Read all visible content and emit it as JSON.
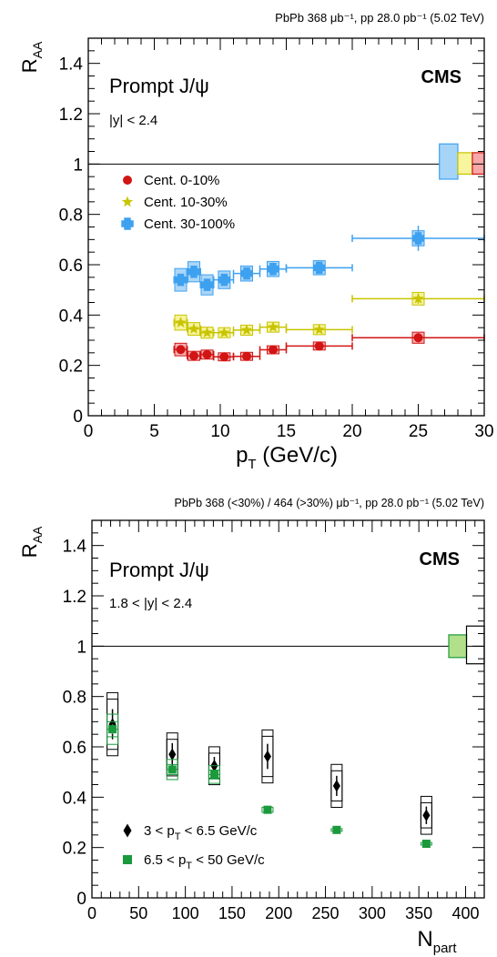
{
  "chart_data": [
    {
      "type": "scatter",
      "header": "PbPb 368 μb⁻¹, pp 28.0 pb⁻¹ (5.02 TeV)",
      "ylabel": "R_AA",
      "xlabel": "p_T (GeV/c)",
      "title": "Prompt J/ψ",
      "subtitle": "|y| < 2.4",
      "experiment": "CMS",
      "xlim": [
        0,
        30
      ],
      "ylim": [
        0,
        1.5
      ],
      "x_ticks": [
        0,
        5,
        10,
        15,
        20,
        25,
        30
      ],
      "y_ticks": [
        0,
        0.2,
        0.4,
        0.6,
        0.8,
        1,
        1.2,
        1.4
      ],
      "y_tick_labels": [
        "0",
        "0.2",
        "0.4",
        "0.6",
        "0.8",
        "1",
        "1.2",
        "1.4"
      ],
      "reference_line": 1,
      "global_uncertainty_boxes": [
        {
          "x0": 26.6,
          "x1": 28.0,
          "lo": 0.94,
          "hi": 1.08,
          "color": "#3ea1f0",
          "fill": "#a6d4f7"
        },
        {
          "x0": 28.0,
          "x1": 29.1,
          "lo": 0.96,
          "hi": 1.045,
          "color": "#c8c400",
          "fill": "#f7f59d"
        },
        {
          "x0": 29.1,
          "x1": 30.0,
          "lo": 0.96,
          "hi": 1.045,
          "color": "#d21414",
          "fill": "#f7a8a8"
        }
      ],
      "legend_position": "upper-left",
      "series": [
        {
          "name": "Cent. 0-10%",
          "marker": "circle",
          "color": "#d21414",
          "fill": "#f4b1b1",
          "points": [
            {
              "x": 7.0,
              "xlo": 6.5,
              "xhi": 7.5,
              "y": 0.263,
              "stat": 0.006,
              "syst": 0.025
            },
            {
              "x": 8.0,
              "xlo": 7.5,
              "xhi": 8.5,
              "y": 0.238,
              "stat": 0.006,
              "syst": 0.018
            },
            {
              "x": 9.0,
              "xlo": 8.5,
              "xhi": 9.5,
              "y": 0.243,
              "stat": 0.006,
              "syst": 0.018
            },
            {
              "x": 10.3,
              "xlo": 9.5,
              "xhi": 11.0,
              "y": 0.234,
              "stat": 0.006,
              "syst": 0.016
            },
            {
              "x": 12.0,
              "xlo": 11.0,
              "xhi": 13.0,
              "y": 0.236,
              "stat": 0.006,
              "syst": 0.016
            },
            {
              "x": 14.0,
              "xlo": 13.0,
              "xhi": 15.0,
              "y": 0.262,
              "stat": 0.007,
              "syst": 0.016
            },
            {
              "x": 17.5,
              "xlo": 15.0,
              "xhi": 20.0,
              "y": 0.277,
              "stat": 0.008,
              "syst": 0.016
            },
            {
              "x": 25.0,
              "xlo": 20.0,
              "xhi": 30.0,
              "y": 0.31,
              "stat": 0.018,
              "syst": 0.022
            }
          ]
        },
        {
          "name": "Cent. 10-30%",
          "marker": "star",
          "color": "#c8c400",
          "fill": "#f5f39a",
          "points": [
            {
              "x": 7.0,
              "xlo": 6.5,
              "xhi": 7.5,
              "y": 0.37,
              "stat": 0.01,
              "syst": 0.03
            },
            {
              "x": 8.0,
              "xlo": 7.5,
              "xhi": 8.5,
              "y": 0.345,
              "stat": 0.008,
              "syst": 0.025
            },
            {
              "x": 9.0,
              "xlo": 8.5,
              "xhi": 9.5,
              "y": 0.33,
              "stat": 0.008,
              "syst": 0.022
            },
            {
              "x": 10.3,
              "xlo": 9.5,
              "xhi": 11.0,
              "y": 0.33,
              "stat": 0.008,
              "syst": 0.02
            },
            {
              "x": 12.0,
              "xlo": 11.0,
              "xhi": 13.0,
              "y": 0.34,
              "stat": 0.008,
              "syst": 0.02
            },
            {
              "x": 14.0,
              "xlo": 13.0,
              "xhi": 15.0,
              "y": 0.352,
              "stat": 0.009,
              "syst": 0.02
            },
            {
              "x": 17.5,
              "xlo": 15.0,
              "xhi": 20.0,
              "y": 0.342,
              "stat": 0.01,
              "syst": 0.02
            },
            {
              "x": 25.0,
              "xlo": 20.0,
              "xhi": 30.0,
              "y": 0.465,
              "stat": 0.02,
              "syst": 0.025
            }
          ]
        },
        {
          "name": "Cent. 30-100%",
          "marker": "cross",
          "color": "#3ea1f0",
          "fill": "#acd6f8",
          "points": [
            {
              "x": 7.0,
              "xlo": 6.5,
              "xhi": 7.5,
              "y": 0.54,
              "stat": 0.02,
              "syst": 0.045
            },
            {
              "x": 8.0,
              "xlo": 7.5,
              "xhi": 8.5,
              "y": 0.572,
              "stat": 0.02,
              "syst": 0.04
            },
            {
              "x": 9.0,
              "xlo": 8.5,
              "xhi": 9.5,
              "y": 0.52,
              "stat": 0.02,
              "syst": 0.04
            },
            {
              "x": 10.3,
              "xlo": 9.5,
              "xhi": 11.0,
              "y": 0.54,
              "stat": 0.02,
              "syst": 0.035
            },
            {
              "x": 12.0,
              "xlo": 11.0,
              "xhi": 13.0,
              "y": 0.565,
              "stat": 0.02,
              "syst": 0.03
            },
            {
              "x": 14.0,
              "xlo": 13.0,
              "xhi": 15.0,
              "y": 0.583,
              "stat": 0.025,
              "syst": 0.03
            },
            {
              "x": 17.5,
              "xlo": 15.0,
              "xhi": 20.0,
              "y": 0.588,
              "stat": 0.022,
              "syst": 0.028
            },
            {
              "x": 25.0,
              "xlo": 20.0,
              "xhi": 30.0,
              "y": 0.705,
              "stat": 0.05,
              "syst": 0.03
            }
          ]
        }
      ]
    },
    {
      "type": "scatter",
      "header": "PbPb 368 (<30%) / 464 (>30%) μb⁻¹, pp 28.0 pb⁻¹ (5.02 TeV)",
      "ylabel": "R_AA",
      "xlabel": "N_part",
      "title": "Prompt J/ψ",
      "subtitle": "1.8 < |y| < 2.4",
      "experiment": "CMS",
      "xlim": [
        0,
        420
      ],
      "ylim": [
        0,
        1.5
      ],
      "x_ticks": [
        0,
        50,
        100,
        150,
        200,
        250,
        300,
        350,
        400
      ],
      "y_ticks": [
        0,
        0.2,
        0.4,
        0.6,
        0.8,
        1,
        1.2,
        1.4
      ],
      "y_tick_labels": [
        "0",
        "0.2",
        "0.4",
        "0.6",
        "0.8",
        "1",
        "1.2",
        "1.4"
      ],
      "reference_line": 1,
      "global_uncertainty_boxes": [
        {
          "x0": 382,
          "x1": 401,
          "lo": 0.955,
          "hi": 1.045,
          "color": "#1a9a3c",
          "fill": "#b2e08a"
        },
        {
          "x0": 401,
          "x1": 420,
          "lo": 0.93,
          "hi": 1.08,
          "color": "#000000",
          "fill": "none"
        }
      ],
      "legend_position": "lower-left",
      "series": [
        {
          "name": "3 < p_T < 6.5 GeV/c",
          "marker": "diamond",
          "color": "#000000",
          "fill": "none",
          "points": [
            {
              "x": 22,
              "y": 0.69,
              "stat": 0.06,
              "syst": 0.1
            },
            {
              "x": 86,
              "y": 0.57,
              "stat": 0.045,
              "syst": 0.06
            },
            {
              "x": 131,
              "y": 0.525,
              "stat": 0.035,
              "syst": 0.05
            },
            {
              "x": 188,
              "y": 0.562,
              "stat": 0.05,
              "syst": 0.08
            },
            {
              "x": 262,
              "y": 0.445,
              "stat": 0.04,
              "syst": 0.06
            },
            {
              "x": 358,
              "y": 0.328,
              "stat": 0.035,
              "syst": 0.05
            }
          ]
        },
        {
          "name": "6.5 < p_T < 50 GeV/c",
          "marker": "square",
          "color": "#1a9a3c",
          "fill": "#1a9a3c",
          "points": [
            {
              "x": 22,
              "y": 0.67,
              "stat": 0.02,
              "syst": 0.06
            },
            {
              "x": 86,
              "y": 0.51,
              "stat": 0.015,
              "syst": 0.04
            },
            {
              "x": 131,
              "y": 0.49,
              "stat": 0.015,
              "syst": 0.035
            },
            {
              "x": 188,
              "y": 0.35,
              "stat": 0.012,
              "syst": 0.01
            },
            {
              "x": 262,
              "y": 0.27,
              "stat": 0.01,
              "syst": 0.005
            },
            {
              "x": 358,
              "y": 0.215,
              "stat": 0.01,
              "syst": 0.005
            }
          ]
        }
      ]
    }
  ]
}
